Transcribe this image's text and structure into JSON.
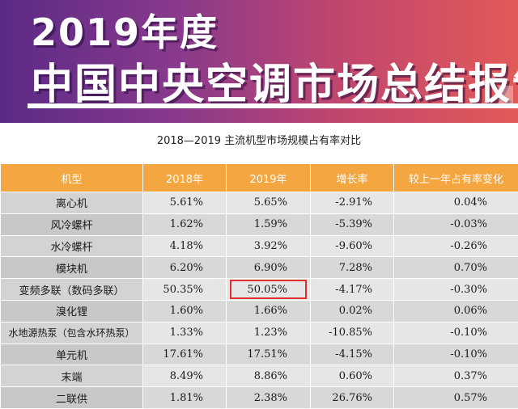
{
  "banner": {
    "line1": "2019年度",
    "line2": "中国中央空调市场总结报告"
  },
  "subtitle": "2018—2019 主流机型市场规模占有率对比",
  "table": {
    "headers": [
      "机型",
      "2018年",
      "2019年",
      "增长率",
      "较上一年占有率变化"
    ],
    "rows": [
      [
        "离心机",
        "5.61%",
        "5.65%",
        "-2.91%",
        "0.04%"
      ],
      [
        "风冷螺杆",
        "1.62%",
        "1.59%",
        "-5.39%",
        "-0.03%"
      ],
      [
        "水冷螺杆",
        "4.18%",
        "3.92%",
        "-9.60%",
        "-0.26%"
      ],
      [
        "模块机",
        "6.20%",
        "6.90%",
        "7.28%",
        "0.70%"
      ],
      [
        "变频多联（数码多联）",
        "50.35%",
        "50.05%",
        "-4.17%",
        "-0.30%"
      ],
      [
        "溴化锂",
        "1.60%",
        "1.66%",
        "0.02%",
        "0.06%"
      ],
      [
        "水地源热泵（包含水环热泵）",
        "1.33%",
        "1.23%",
        "-10.85%",
        "-0.10%"
      ],
      [
        "单元机",
        "17.61%",
        "17.51%",
        "-4.15%",
        "-0.10%"
      ],
      [
        "末端",
        "8.49%",
        "8.86%",
        "0.60%",
        "0.37%"
      ],
      [
        "二联供",
        "1.81%",
        "2.38%",
        "26.76%",
        "0.57%"
      ]
    ],
    "highlight_color": "#e03030",
    "header_color": "#f4a640"
  }
}
